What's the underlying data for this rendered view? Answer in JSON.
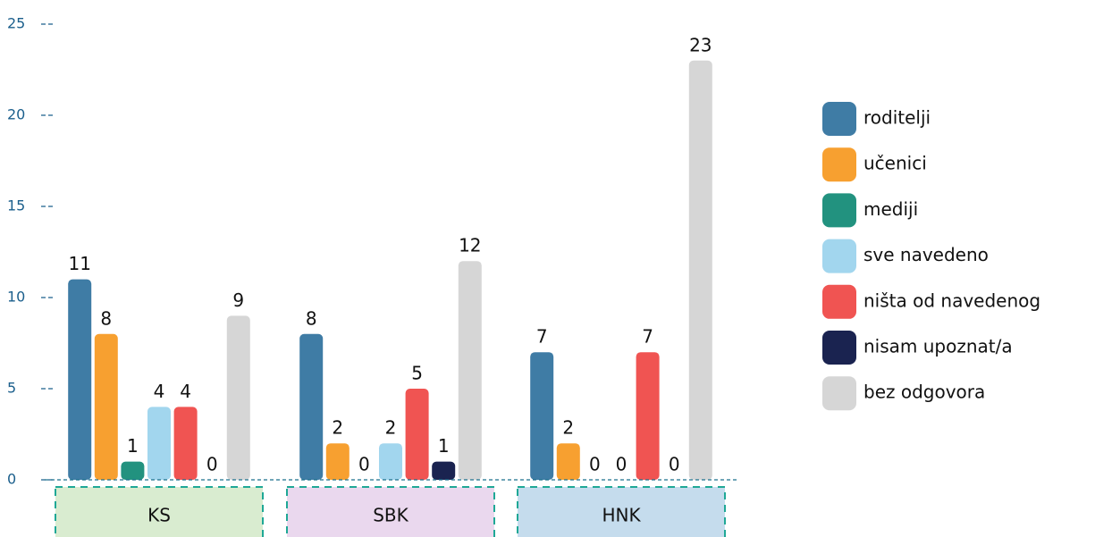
{
  "chart_data": {
    "type": "bar",
    "categories": [
      "KS",
      "SBK",
      "HNK"
    ],
    "category_colors": [
      "#d9ecd0",
      "#ead8ee",
      "#c5dced"
    ],
    "series": [
      {
        "name": "roditelji",
        "color": "#3f7ca5",
        "values": [
          11,
          8,
          7
        ]
      },
      {
        "name": "učenici",
        "color": "#f7a030",
        "values": [
          8,
          2,
          2
        ]
      },
      {
        "name": "mediji",
        "color": "#22927f",
        "values": [
          1,
          0,
          0
        ]
      },
      {
        "name": "sve navedeno",
        "color": "#a2d6ee",
        "values": [
          4,
          2,
          0
        ]
      },
      {
        "name": "ništa od navedenog",
        "color": "#f05452",
        "values": [
          4,
          5,
          7
        ]
      },
      {
        "name": "nisam upoznat/a",
        "color": "#1a2350",
        "values": [
          0,
          1,
          0
        ]
      },
      {
        "name": "bez odgovora",
        "color": "#d6d6d6",
        "values": [
          9,
          12,
          23
        ]
      }
    ],
    "ylim": [
      0,
      25
    ],
    "yticks": [
      0,
      5,
      10,
      15,
      20,
      25
    ],
    "legend": "right"
  }
}
